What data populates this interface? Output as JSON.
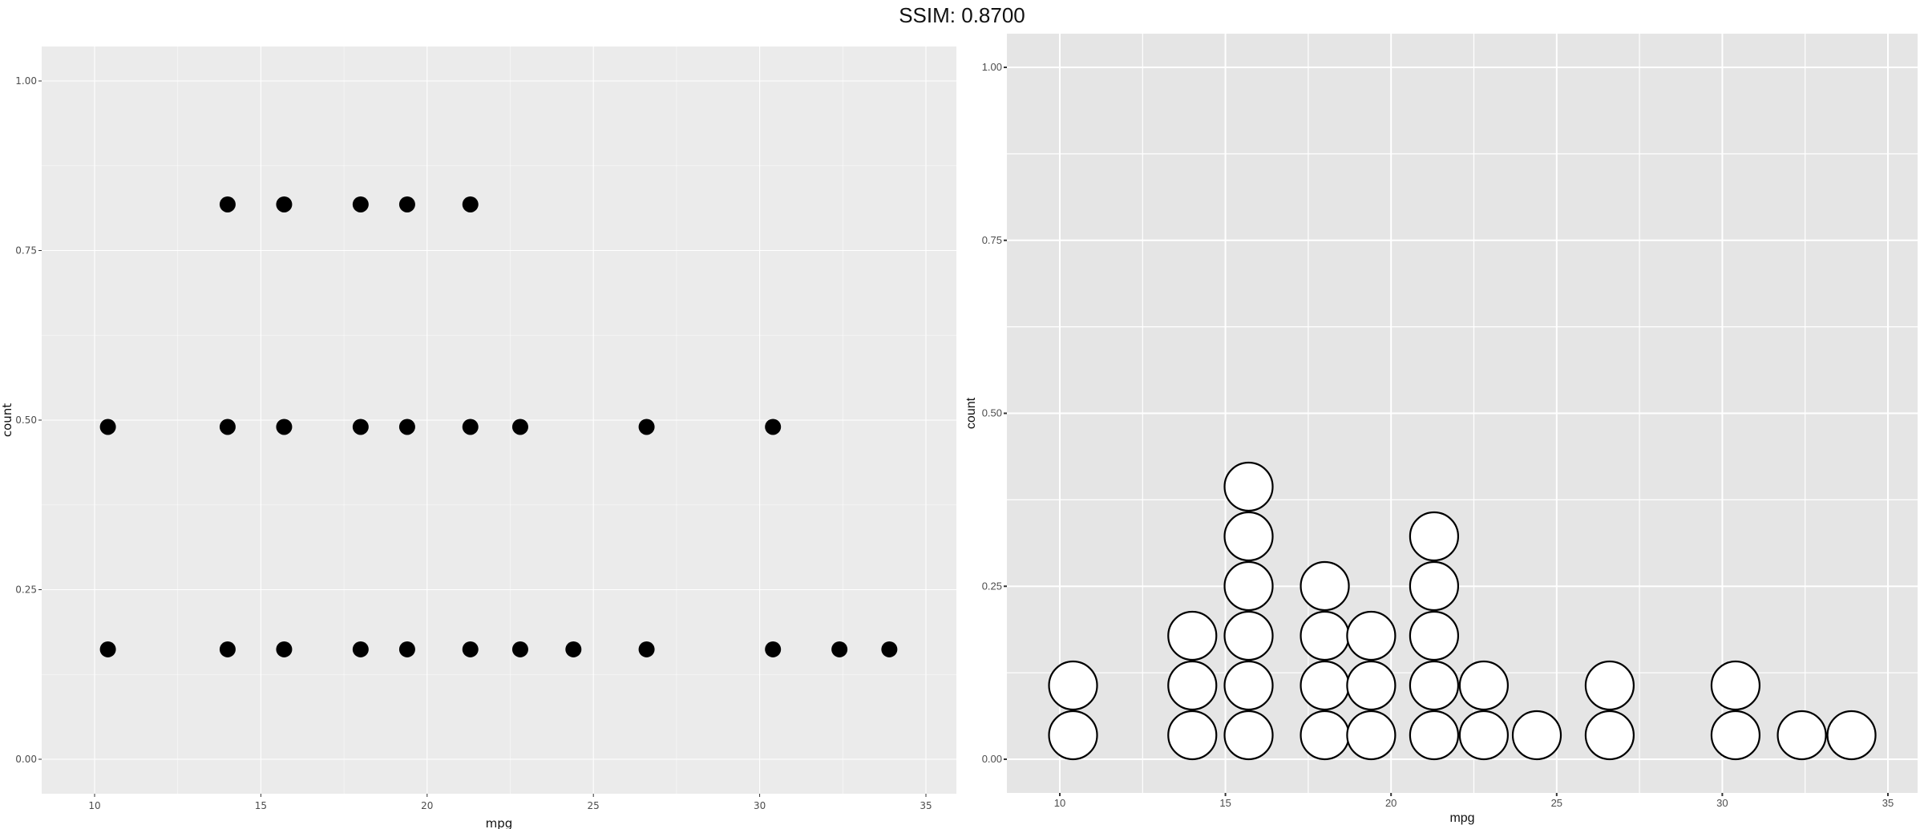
{
  "header": {
    "title": "SSIM: 0.8700"
  },
  "chart_data": [
    {
      "type": "scatter",
      "title": "",
      "xlabel": "mpg",
      "ylabel": "count",
      "xlim": [
        8.4,
        35.9
      ],
      "ylim": [
        -0.05,
        1.05
      ],
      "x_ticks": [
        10,
        15,
        20,
        25,
        30,
        35
      ],
      "x_tick_labels": [
        "10",
        "15",
        "20",
        "25",
        "30",
        "35"
      ],
      "y_ticks": [
        0,
        0.25,
        0.5,
        0.75,
        1.0
      ],
      "y_tick_labels": [
        "0.00",
        "0.25",
        "0.50",
        "0.75",
        "1.00"
      ],
      "grid": true,
      "background": "#ebebeb",
      "marker_color": "#000000",
      "points": [
        {
          "x": 10.4,
          "y": 0.162
        },
        {
          "x": 14.0,
          "y": 0.162
        },
        {
          "x": 15.7,
          "y": 0.162
        },
        {
          "x": 18.0,
          "y": 0.162
        },
        {
          "x": 19.4,
          "y": 0.162
        },
        {
          "x": 21.3,
          "y": 0.162
        },
        {
          "x": 22.8,
          "y": 0.162
        },
        {
          "x": 24.4,
          "y": 0.162
        },
        {
          "x": 26.6,
          "y": 0.162
        },
        {
          "x": 30.4,
          "y": 0.162
        },
        {
          "x": 32.4,
          "y": 0.162
        },
        {
          "x": 33.9,
          "y": 0.162
        },
        {
          "x": 10.4,
          "y": 0.49
        },
        {
          "x": 14.0,
          "y": 0.49
        },
        {
          "x": 15.7,
          "y": 0.49
        },
        {
          "x": 18.0,
          "y": 0.49
        },
        {
          "x": 19.4,
          "y": 0.49
        },
        {
          "x": 21.3,
          "y": 0.49
        },
        {
          "x": 22.8,
          "y": 0.49
        },
        {
          "x": 26.6,
          "y": 0.49
        },
        {
          "x": 30.4,
          "y": 0.49
        },
        {
          "x": 14.0,
          "y": 0.818
        },
        {
          "x": 15.7,
          "y": 0.818
        },
        {
          "x": 18.0,
          "y": 0.818
        },
        {
          "x": 19.4,
          "y": 0.818
        },
        {
          "x": 21.3,
          "y": 0.818
        }
      ]
    },
    {
      "type": "scatter",
      "subtype": "dotplot",
      "title": "",
      "xlabel": "mpg",
      "ylabel": "count",
      "xlim": [
        8.4,
        35.9
      ],
      "ylim": [
        -0.05,
        1.05
      ],
      "x_ticks": [
        10,
        15,
        20,
        25,
        30,
        35
      ],
      "x_tick_labels": [
        "10",
        "15",
        "20",
        "25",
        "30",
        "35"
      ],
      "y_ticks": [
        0,
        0.25,
        0.5,
        0.75,
        1.0
      ],
      "y_tick_labels": [
        "0.00",
        "0.25",
        "0.50",
        "0.75",
        "1.00"
      ],
      "grid": true,
      "background": "#e5e5e5",
      "marker_fill": "#ffffff",
      "marker_stroke": "#000000",
      "stacks": [
        {
          "x": 10.4,
          "count": 2
        },
        {
          "x": 14.0,
          "count": 3
        },
        {
          "x": 15.7,
          "count": 6
        },
        {
          "x": 18.0,
          "count": 4
        },
        {
          "x": 19.4,
          "count": 3
        },
        {
          "x": 21.3,
          "count": 5
        },
        {
          "x": 22.8,
          "count": 2
        },
        {
          "x": 24.4,
          "count": 1
        },
        {
          "x": 26.6,
          "count": 2
        },
        {
          "x": 30.4,
          "count": 2
        },
        {
          "x": 32.4,
          "count": 1
        },
        {
          "x": 33.9,
          "count": 1
        }
      ]
    }
  ]
}
